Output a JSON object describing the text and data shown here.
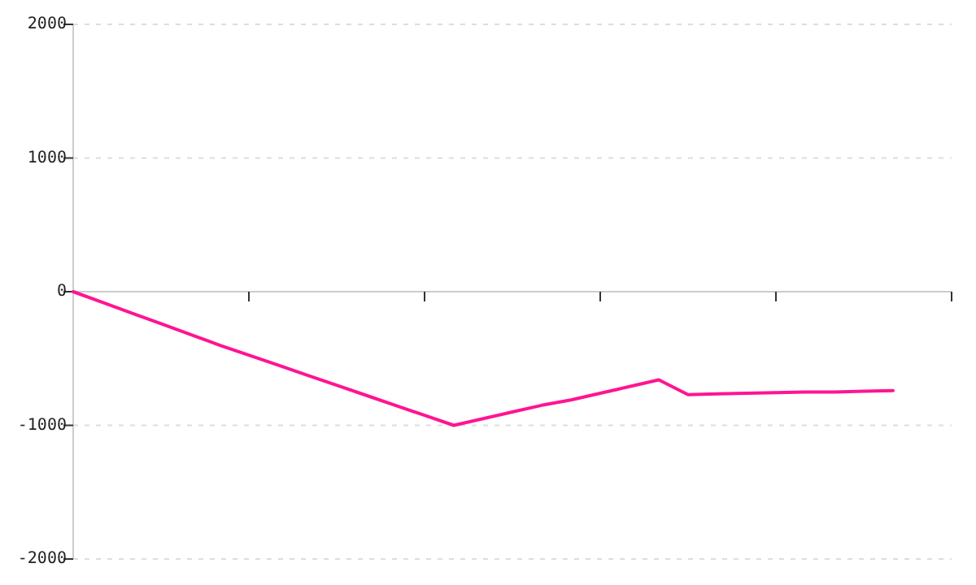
{
  "chart_data": {
    "type": "line",
    "categories": [
      null,
      null,
      null,
      null,
      null,
      null,
      null,
      null,
      null,
      null,
      null,
      null,
      null,
      null,
      null,
      null,
      null,
      null,
      null,
      null,
      null,
      null,
      null,
      null,
      null,
      null,
      null,
      null,
      null
    ],
    "series": [
      {
        "color": "#ff1493",
        "values": [
          0,
          -80,
          -160,
          -240,
          -320,
          -400,
          -475,
          -550,
          -625,
          -700,
          -775,
          -850,
          -925,
          -1000,
          -950,
          -900,
          -850,
          -810,
          -760,
          -710,
          -660,
          -770,
          -765,
          -760,
          -755,
          -750,
          -750,
          -745,
          -740
        ]
      }
    ],
    "ylim": [
      -2000,
      2000
    ],
    "yticks": [
      -2000,
      -1000,
      0,
      1000,
      2000
    ],
    "grid": "y",
    "marker": "none",
    "line_style": "solid"
  }
}
